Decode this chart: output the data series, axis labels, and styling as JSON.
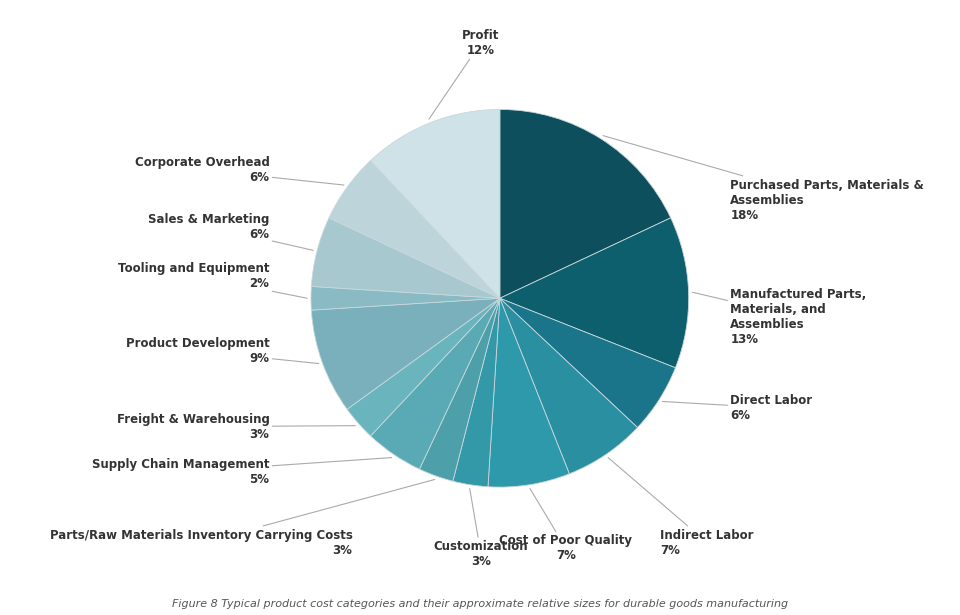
{
  "labels": [
    "Purchased Parts, Materials &\nAssemblies",
    "Manufactured Parts,\nMaterials, and\nAssemblies",
    "Direct Labor",
    "Indirect Labor",
    "Cost of Poor Quality",
    "Customization",
    "Parts/Raw Materials Inventory Carrying Costs",
    "Supply Chain Management",
    "Freight & Warehousing",
    "Product Development",
    "Tooling and Equipment",
    "Sales & Marketing",
    "Corporate Overhead",
    "Profit"
  ],
  "values": [
    18,
    13,
    6,
    7,
    7,
    3,
    3,
    5,
    3,
    9,
    2,
    6,
    6,
    12
  ],
  "colors": [
    "#0d4f5c",
    "#0d5f6e",
    "#1a758a",
    "#2a8fa0",
    "#2e99ab",
    "#3398a8",
    "#4da0aa",
    "#5aaab5",
    "#6ab5bd",
    "#7ab0bc",
    "#8abbc5",
    "#a8c8d0",
    "#bdd4da",
    "#cfe2e8"
  ],
  "label_lines": [
    [
      0,
      "Purchased Parts, Materials &\nAssemblies",
      "18%",
      "right",
      1.12,
      0.0
    ],
    [
      1,
      "Manufactured Parts,\nMaterials, and\nAssemblies",
      "13%",
      "right",
      1.12,
      0.0
    ],
    [
      2,
      "Direct Labor",
      "6%",
      "right",
      1.12,
      0.0
    ],
    [
      3,
      "Indirect Labor",
      "7%",
      "right",
      1.12,
      0.0
    ],
    [
      4,
      "Cost of Poor Quality",
      "7%",
      "right",
      1.12,
      0.0
    ],
    [
      5,
      "Customization",
      "3%",
      "center",
      1.18,
      0.0
    ],
    [
      6,
      "Parts/Raw Materials Inventory Carrying Costs",
      "3%",
      "right",
      1.12,
      0.0
    ],
    [
      7,
      "Supply Chain Management",
      "5%",
      "right",
      1.12,
      0.0
    ],
    [
      8,
      "Freight & Warehousing",
      "3%",
      "right",
      1.12,
      0.0
    ],
    [
      9,
      "Product Development",
      "9%",
      "right",
      1.12,
      0.0
    ],
    [
      10,
      "Tooling and Equipment",
      "2%",
      "right",
      1.12,
      0.0
    ],
    [
      11,
      "Sales & Marketing",
      "6%",
      "right",
      1.12,
      0.0
    ],
    [
      12,
      "Corporate Overhead",
      "6%",
      "right",
      1.12,
      0.0
    ],
    [
      13,
      "Profit",
      "12%",
      "center",
      1.18,
      0.0
    ]
  ],
  "background_color": "#ffffff",
  "text_color": "#333333",
  "edge_color": "#c8d8dc",
  "title": "Figure 8 Typical product cost categories and their approximate relative sizes for durable goods manufacturing",
  "fontsize_label": 8.5,
  "fontsize_title": 8.0
}
